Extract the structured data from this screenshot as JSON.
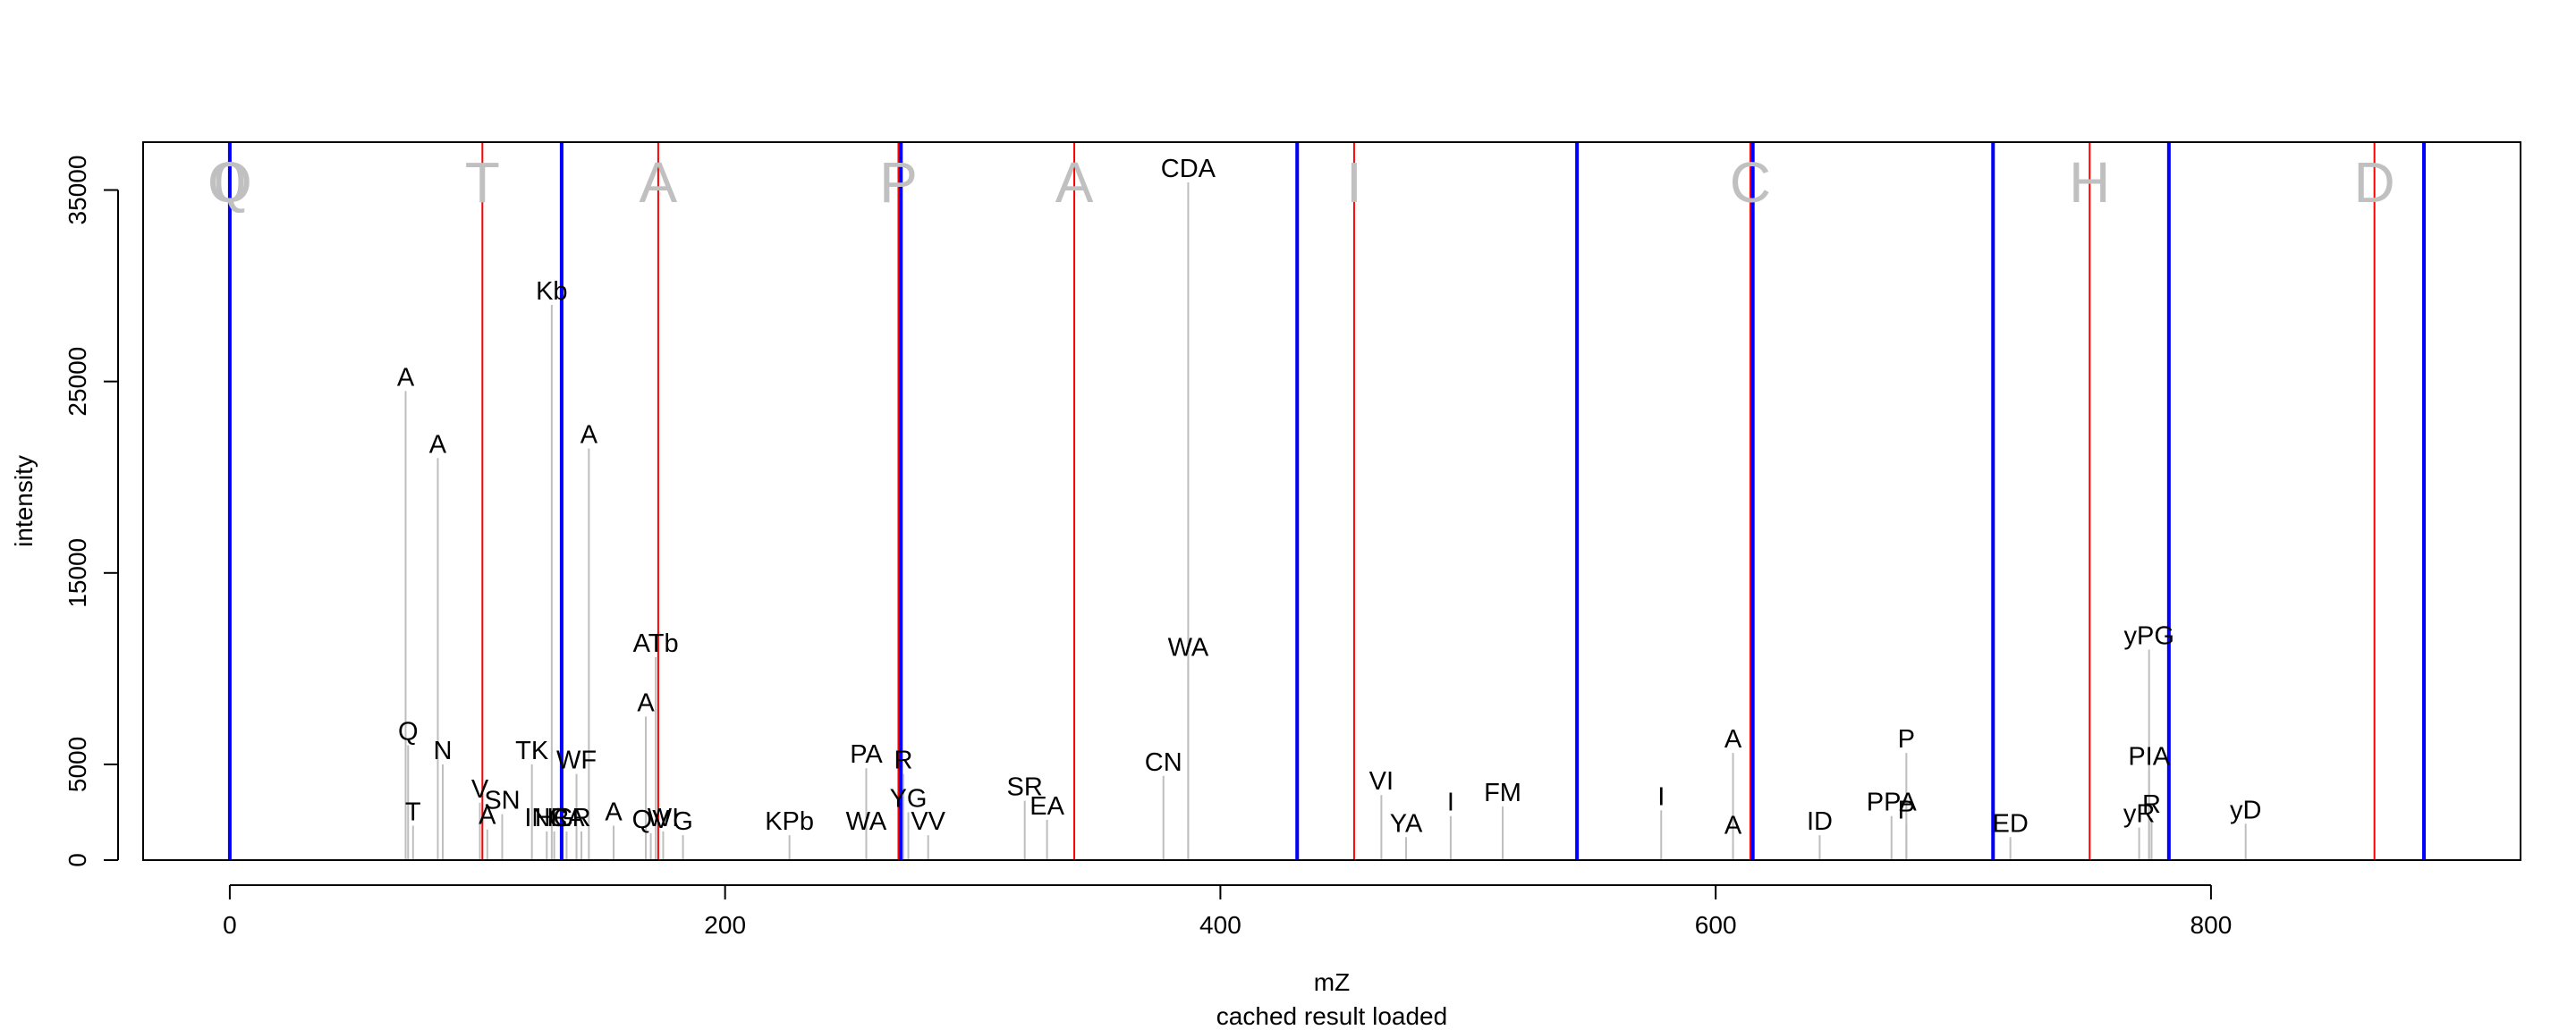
{
  "chart_data": {
    "type": "spectrum",
    "xlabel": "mZ",
    "ylabel": "intensity",
    "subtitle": "cached result loaded",
    "xlim": [
      -35,
      925
    ],
    "ylim": [
      0,
      37500
    ],
    "x_ticks": [
      0,
      200,
      400,
      600,
      800
    ],
    "x_tick_labels": [
      "0",
      "200",
      "400",
      "600",
      "800"
    ],
    "y_ticks": [
      0,
      5000,
      15000,
      25000,
      35000
    ],
    "y_tick_labels": [
      "0",
      "5000",
      "15000",
      "25000",
      "35000"
    ],
    "grid": false,
    "colors": {
      "peak": "#bebebe",
      "red_line": "#ff0000",
      "blue_line": "#0000ff",
      "sequence": "#c0c0c0",
      "text": "#000000"
    },
    "sequence_label_y": 35500,
    "sequence_letters": [
      {
        "x": 0,
        "label": "Q"
      },
      {
        "x": 0,
        "label": "0"
      },
      {
        "x": 102,
        "label": "T"
      },
      {
        "x": 173,
        "label": "A"
      },
      {
        "x": 270,
        "label": "P"
      },
      {
        "x": 341,
        "label": "A"
      },
      {
        "x": 454,
        "label": "I"
      },
      {
        "x": 614,
        "label": "C"
      },
      {
        "x": 751,
        "label": "H"
      },
      {
        "x": 866,
        "label": "D"
      }
    ],
    "red_lines": [
      0,
      102,
      173,
      270,
      341,
      454,
      614,
      751,
      866
    ],
    "blue_lines": [
      0,
      134,
      271,
      431,
      544,
      615,
      712,
      783,
      886
    ],
    "peaks": [
      {
        "x": 71,
        "y": 24500,
        "label": "A"
      },
      {
        "x": 72,
        "y": 6000,
        "label": "Q"
      },
      {
        "x": 74,
        "y": 1800,
        "label": "T"
      },
      {
        "x": 84,
        "y": 21000,
        "label": "A"
      },
      {
        "x": 86,
        "y": 5000,
        "label": "N"
      },
      {
        "x": 101,
        "y": 3000,
        "label": "V"
      },
      {
        "x": 104,
        "y": 1600,
        "label": "A"
      },
      {
        "x": 110,
        "y": 2400,
        "label": "SN"
      },
      {
        "x": 122,
        "y": 5000,
        "label": "TK"
      },
      {
        "x": 128,
        "y": 1500,
        "label": "INR"
      },
      {
        "x": 130,
        "y": 29000,
        "label": "Kb"
      },
      {
        "x": 131,
        "y": 1500,
        "label": "HG"
      },
      {
        "x": 136,
        "y": 1500,
        "label": "CA"
      },
      {
        "x": 140,
        "y": 4500,
        "label": "WF"
      },
      {
        "x": 142,
        "y": 1500,
        "label": "R"
      },
      {
        "x": 145,
        "y": 21500,
        "label": "A"
      },
      {
        "x": 155,
        "y": 1800,
        "label": "A"
      },
      {
        "x": 168,
        "y": 7500,
        "label": "A"
      },
      {
        "x": 172,
        "y": 10600,
        "label": "ATb"
      },
      {
        "x": 170,
        "y": 1400,
        "label": "QV"
      },
      {
        "x": 175,
        "y": 1500,
        "label": "WI"
      },
      {
        "x": 183,
        "y": 1300,
        "label": "G"
      },
      {
        "x": 226,
        "y": 1300,
        "label": "KPb"
      },
      {
        "x": 257,
        "y": 4800,
        "label": "PA"
      },
      {
        "x": 257,
        "y": 1300,
        "label": "WA"
      },
      {
        "x": 272,
        "y": 4500,
        "label": "R"
      },
      {
        "x": 274,
        "y": 2500,
        "label": "YG"
      },
      {
        "x": 282,
        "y": 1300,
        "label": "VV"
      },
      {
        "x": 321,
        "y": 3100,
        "label": "SR"
      },
      {
        "x": 330,
        "y": 2100,
        "label": "EA"
      },
      {
        "x": 377,
        "y": 4400,
        "label": "CN"
      },
      {
        "x": 387,
        "y": 35400,
        "label": "CDA"
      },
      {
        "x": 387,
        "y": 10400,
        "label": "WA"
      },
      {
        "x": 465,
        "y": 3400,
        "label": "VI"
      },
      {
        "x": 475,
        "y": 1200,
        "label": "YA"
      },
      {
        "x": 493,
        "y": 2300,
        "label": "I"
      },
      {
        "x": 514,
        "y": 2800,
        "label": "FM"
      },
      {
        "x": 578,
        "y": 2600,
        "label": "I"
      },
      {
        "x": 607,
        "y": 5600,
        "label": "A"
      },
      {
        "x": 607,
        "y": 1100,
        "label": "A"
      },
      {
        "x": 642,
        "y": 1300,
        "label": "ID"
      },
      {
        "x": 671,
        "y": 2300,
        "label": "PPA"
      },
      {
        "x": 677,
        "y": 5600,
        "label": "P"
      },
      {
        "x": 677,
        "y": 1900,
        "label": "P"
      },
      {
        "x": 719,
        "y": 1200,
        "label": "ED"
      },
      {
        "x": 775,
        "y": 11000,
        "label": "yPG"
      },
      {
        "x": 775,
        "y": 4700,
        "label": "PIA"
      },
      {
        "x": 771,
        "y": 1700,
        "label": "yR"
      },
      {
        "x": 776,
        "y": 2200,
        "label": "R"
      },
      {
        "x": 814,
        "y": 1900,
        "label": "yD"
      }
    ]
  }
}
